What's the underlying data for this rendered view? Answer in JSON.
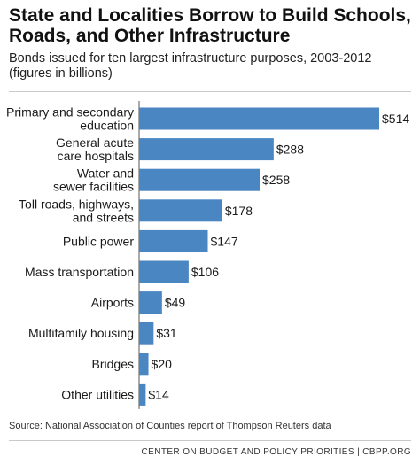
{
  "header": {
    "title_lines": [
      "State and Localities Borrow to Build Schools,",
      "Roads, and Other Infrastructure"
    ],
    "subtitle_lines": [
      "Bonds issued for ten largest infrastructure purposes, 2003-2012",
      "(figures in billions)"
    ]
  },
  "source": "Source: National Association of Counties report of Thompson Reuters data",
  "footer": "CENTER ON BUDGET AND POLICY PRIORITIES | CBPP.ORG",
  "colors": {
    "bar": "#4a86c1",
    "axis": "#555555"
  },
  "chart_data": {
    "type": "bar",
    "orientation": "horizontal",
    "title": "State and Localities Borrow to Build Schools, Roads, and Other Infrastructure",
    "subtitle": "Bonds issued for ten largest infrastructure purposes, 2003-2012 (figures in billions)",
    "categories": [
      [
        "Primary and secondary",
        "education"
      ],
      [
        "General acute",
        "care hospitals"
      ],
      [
        "Water and",
        "sewer facilities"
      ],
      [
        "Toll roads, highways,",
        "and streets"
      ],
      [
        "Public power"
      ],
      [
        "Mass transportation"
      ],
      [
        "Airports"
      ],
      [
        "Multifamily housing"
      ],
      [
        "Bridges"
      ],
      [
        "Other utilities"
      ]
    ],
    "values": [
      514,
      288,
      258,
      178,
      147,
      106,
      49,
      31,
      20,
      14
    ],
    "value_labels": [
      "$514",
      "$288",
      "$258",
      "$178",
      "$147",
      "$106",
      "$49",
      "$31",
      "$20",
      "$14"
    ],
    "xlim": [
      0,
      514
    ],
    "grid": false
  }
}
